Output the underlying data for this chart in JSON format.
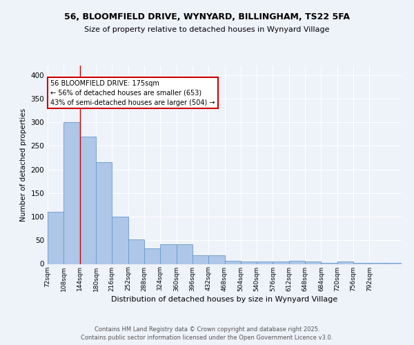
{
  "title_line1": "56, BLOOMFIELD DRIVE, WYNYARD, BILLINGHAM, TS22 5FA",
  "title_line2": "Size of property relative to detached houses in Wynyard Village",
  "xlabel": "Distribution of detached houses by size in Wynyard Village",
  "ylabel": "Number of detached properties",
  "bar_values": [
    110,
    300,
    270,
    215,
    100,
    52,
    33,
    41,
    41,
    18,
    18,
    7,
    5,
    5,
    5,
    7,
    5,
    2,
    5,
    2,
    2,
    2
  ],
  "bin_labels": [
    "72sqm",
    "108sqm",
    "144sqm",
    "180sqm",
    "216sqm",
    "252sqm",
    "288sqm",
    "324sqm",
    "360sqm",
    "396sqm",
    "432sqm",
    "468sqm",
    "504sqm",
    "540sqm",
    "576sqm",
    "612sqm",
    "648sqm",
    "684sqm",
    "720sqm",
    "756sqm",
    "792sqm"
  ],
  "bar_color": "#aec6e8",
  "bar_edge_color": "#6699cc",
  "red_line_x": 2.0,
  "annotation_text": "56 BLOOMFIELD DRIVE: 175sqm\n← 56% of detached houses are smaller (653)\n43% of semi-detached houses are larger (504) →",
  "annotation_box_color": "#ffffff",
  "annotation_border_color": "#cc0000",
  "footer_text": "Contains HM Land Registry data © Crown copyright and database right 2025.\nContains public sector information licensed under the Open Government Licence v3.0.",
  "ylim": [
    0,
    420
  ],
  "yticks": [
    0,
    50,
    100,
    150,
    200,
    250,
    300,
    350,
    400
  ],
  "background_color": "#eef2f9",
  "grid_color": "#ffffff"
}
